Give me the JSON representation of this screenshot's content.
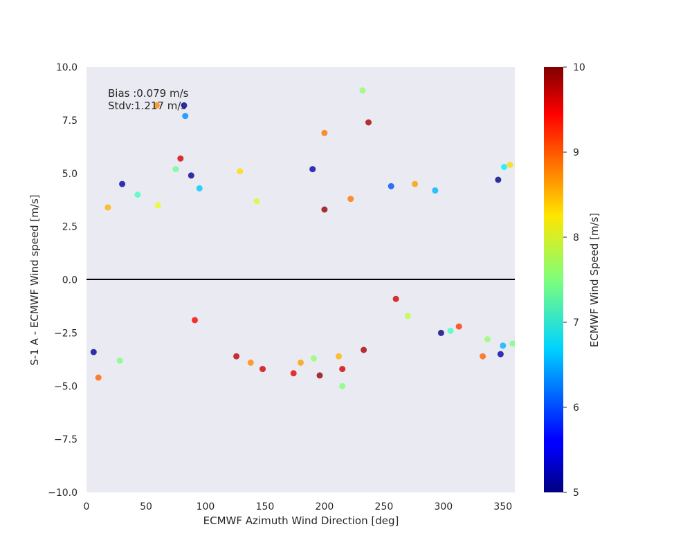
{
  "chart_data": {
    "type": "scatter",
    "title": "",
    "xlabel": "ECMWF Azimuth Wind Direction [deg]",
    "ylabel": "S-1 A - ECMWF Wind speed [m/s]",
    "xlim": [
      0,
      360
    ],
    "ylim": [
      -10,
      10
    ],
    "x_ticks": [
      0,
      50,
      100,
      150,
      200,
      250,
      300,
      350
    ],
    "x_tick_labels": [
      "0",
      "50",
      "100",
      "150",
      "200",
      "250",
      "300",
      "350"
    ],
    "y_ticks": [
      -10,
      -7.5,
      -5,
      -2.5,
      0,
      2.5,
      5,
      7.5,
      10
    ],
    "y_tick_labels": [
      "−10.0",
      "−7.5",
      "−5.0",
      "−2.5",
      "0.0",
      "2.5",
      "5.0",
      "7.5",
      "10.0"
    ],
    "grid": false,
    "background": "#eaeaf2",
    "zero_line": 0,
    "annotations": {
      "bias": "Bias :0.079 m/s",
      "stdv": "Stdv:1.217 m/s"
    },
    "colorbar": {
      "label": "ECMWF Wind Speed [m/s]",
      "colormap": "jet",
      "min": 5,
      "max": 10,
      "ticks": [
        5,
        6,
        7,
        8,
        9,
        10
      ],
      "tick_labels": [
        "5",
        "6",
        "7",
        "8",
        "9",
        "10"
      ]
    },
    "points": [
      [
        82,
        8.2,
        5.3
      ],
      [
        83,
        7.7,
        6.3
      ],
      [
        59,
        8.2,
        8.7
      ],
      [
        232,
        8.9,
        7.6
      ],
      [
        237,
        7.4,
        9.8
      ],
      [
        200,
        6.9,
        8.8
      ],
      [
        190,
        5.2,
        5.2
      ],
      [
        79,
        5.7,
        9.6
      ],
      [
        129,
        5.1,
        8.3
      ],
      [
        88,
        4.9,
        5.1
      ],
      [
        30,
        4.5,
        5.2
      ],
      [
        346,
        4.7,
        5.0
      ],
      [
        351,
        5.3,
        6.8
      ],
      [
        356,
        5.4,
        8.3
      ],
      [
        75,
        5.2,
        7.4
      ],
      [
        256,
        4.4,
        6.0
      ],
      [
        293,
        4.2,
        6.5
      ],
      [
        276,
        4.5,
        8.6
      ],
      [
        43,
        4.0,
        7.2
      ],
      [
        143,
        3.7,
        7.9
      ],
      [
        222,
        3.8,
        8.8
      ],
      [
        200,
        3.3,
        9.9
      ],
      [
        95,
        4.3,
        6.6
      ],
      [
        60,
        3.5,
        8.0
      ],
      [
        18,
        3.4,
        8.5
      ],
      [
        10,
        -4.6,
        8.9
      ],
      [
        28,
        -3.8,
        7.5
      ],
      [
        6,
        -3.4,
        5.1
      ],
      [
        91,
        -1.9,
        9.4
      ],
      [
        148,
        -4.2,
        9.6
      ],
      [
        138,
        -3.9,
        8.7
      ],
      [
        126,
        -3.6,
        9.7
      ],
      [
        174,
        -4.4,
        9.5
      ],
      [
        180,
        -3.9,
        8.6
      ],
      [
        196,
        -4.5,
        9.9
      ],
      [
        215,
        -5.0,
        7.5
      ],
      [
        215,
        -4.2,
        9.6
      ],
      [
        212,
        -3.6,
        8.5
      ],
      [
        191,
        -3.7,
        7.6
      ],
      [
        233,
        -3.3,
        9.8
      ],
      [
        270,
        -1.7,
        7.8
      ],
      [
        298,
        -2.5,
        5.0
      ],
      [
        306,
        -2.4,
        7.2
      ],
      [
        333,
        -3.6,
        8.9
      ],
      [
        348,
        -3.5,
        5.2
      ],
      [
        350,
        -3.1,
        6.5
      ],
      [
        358,
        -3.0,
        7.5
      ],
      [
        337,
        -2.8,
        7.6
      ],
      [
        260,
        -0.9,
        9.6
      ],
      [
        313,
        -2.2,
        9.1
      ]
    ]
  }
}
